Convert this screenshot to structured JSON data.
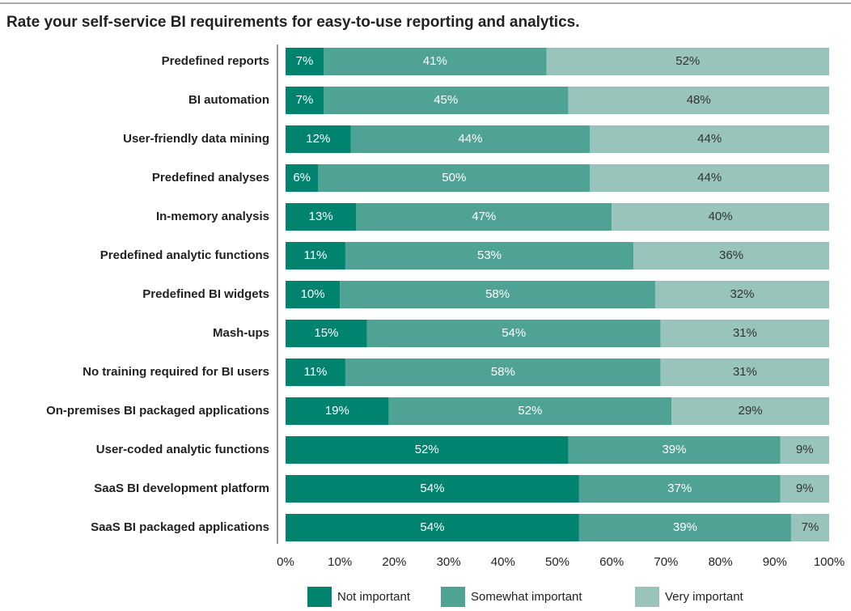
{
  "chart_data": {
    "type": "stacked_bar_horizontal",
    "title": "Rate your self-service BI requirements for easy-to-use reporting and analytics.",
    "categories": [
      "Predefined reports",
      "BI automation",
      "User-friendly data mining",
      "Predefined analyses",
      "In-memory analysis",
      "Predefined analytic functions",
      "Predefined BI widgets",
      "Mash-ups",
      "No training required for BI users",
      "On-premises BI packaged applications",
      "User-coded analytic functions",
      "SaaS BI development platform",
      "SaaS BI packaged applications"
    ],
    "series": [
      {
        "name": "Not important",
        "color": "#00836f",
        "values": [
          7,
          7,
          12,
          6,
          13,
          11,
          10,
          15,
          11,
          19,
          52,
          54,
          54
        ],
        "value_labels": [
          "7%",
          "7%",
          "12%",
          "6%",
          "13%",
          "11%",
          "10%",
          "15%",
          "11%",
          "19%",
          "52%",
          "54%",
          "54%"
        ]
      },
      {
        "name": "Somewhat important",
        "color": "#4fa395",
        "values": [
          41,
          45,
          44,
          50,
          47,
          53,
          58,
          54,
          58,
          52,
          39,
          37,
          39
        ],
        "value_labels": [
          "41%",
          "45%",
          "44%",
          "50%",
          "47%",
          "53%",
          "58%",
          "54%",
          "58%",
          "52%",
          "39%",
          "37%",
          "39%"
        ]
      },
      {
        "name": "Very important",
        "color": "#98c4bb",
        "values": [
          52,
          48,
          44,
          44,
          40,
          36,
          32,
          31,
          31,
          29,
          9,
          9,
          7
        ],
        "value_labels": [
          "52%",
          "48%",
          "44%",
          "44%",
          "40%",
          "36%",
          "32%",
          "31%",
          "31%",
          "29%",
          "9%",
          "9%",
          "7%"
        ]
      }
    ],
    "xlim": [
      0,
      100
    ],
    "xticks": [
      {
        "value": 0,
        "label": "0%"
      },
      {
        "value": 10,
        "label": "10%"
      },
      {
        "value": 20,
        "label": "20%"
      },
      {
        "value": 30,
        "label": "30%"
      },
      {
        "value": 40,
        "label": "40%"
      },
      {
        "value": 50,
        "label": "50%"
      },
      {
        "value": 60,
        "label": "60%"
      },
      {
        "value": 70,
        "label": "70%"
      },
      {
        "value": 80,
        "label": "80%"
      },
      {
        "value": 90,
        "label": "90%"
      },
      {
        "value": 100,
        "label": "100%"
      }
    ],
    "legend": "bottom"
  }
}
